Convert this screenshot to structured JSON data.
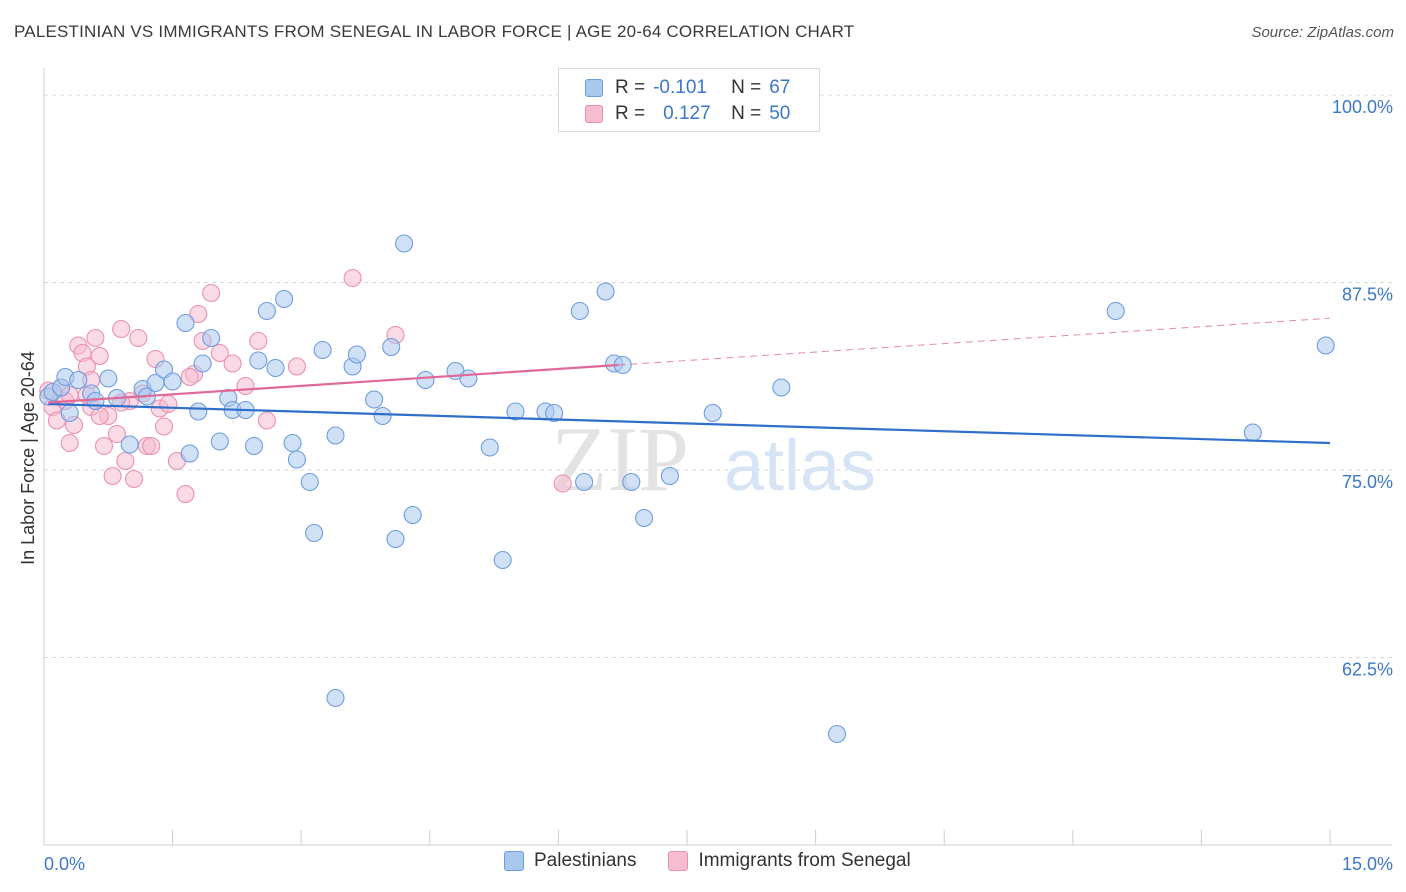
{
  "title": "PALESTINIAN VS IMMIGRANTS FROM SENEGAL IN LABOR FORCE | AGE 20-64 CORRELATION CHART",
  "source": "Source: ZipAtlas.com",
  "watermark": {
    "zip": "ZIP",
    "atlas": "atlas"
  },
  "legend": {
    "r_label": "R =",
    "n_label": "N =",
    "series": [
      {
        "r": "-0.101",
        "n": "67"
      },
      {
        "r": "0.127",
        "n": "50"
      }
    ]
  },
  "colors": {
    "blue_fill": "#a9c8ee",
    "blue_stroke": "#6d9de0",
    "blue_line": "#2f6fca",
    "pink_fill": "#f6bcd0",
    "pink_stroke": "#ea8fb0",
    "pink_line": "#e0699a",
    "tick_label": "#3b78c9",
    "grid": "#d8d8d8"
  },
  "chart_data": {
    "type": "scatter",
    "title": "PALESTINIAN VS IMMIGRANTS FROM SENEGAL IN LABOR FORCE | AGE 20-64 CORRELATION CHART",
    "ylabel": "In Labor Force | Age 20-64",
    "xlabel": "",
    "xlim": [
      0,
      15
    ],
    "ylim": [
      50,
      101
    ],
    "x_tick_labels": [
      "0.0%",
      "15.0%"
    ],
    "y_ticks": [
      62.5,
      75.0,
      87.5,
      100.0
    ],
    "y_tick_labels": [
      "62.5%",
      "75.0%",
      "87.5%",
      "100.0%"
    ],
    "series": [
      {
        "name": "Palestinians",
        "trend": {
          "x0": 0.05,
          "y0": 79.4,
          "x1": 15.0,
          "y1": 76.8,
          "dashed_to": 15.0
        },
        "points": [
          [
            0.05,
            79.9
          ],
          [
            0.1,
            80.2
          ],
          [
            0.2,
            80.5
          ],
          [
            0.25,
            81.2
          ],
          [
            0.4,
            81.0
          ],
          [
            0.55,
            80.1
          ],
          [
            0.6,
            79.6
          ],
          [
            0.75,
            81.1
          ],
          [
            0.85,
            79.8
          ],
          [
            1.0,
            76.7
          ],
          [
            1.15,
            80.4
          ],
          [
            1.2,
            79.9
          ],
          [
            1.3,
            80.8
          ],
          [
            1.4,
            81.7
          ],
          [
            1.5,
            80.9
          ],
          [
            1.65,
            84.8
          ],
          [
            1.7,
            76.1
          ],
          [
            1.8,
            78.9
          ],
          [
            1.85,
            82.1
          ],
          [
            1.95,
            83.8
          ],
          [
            2.05,
            76.9
          ],
          [
            2.15,
            79.8
          ],
          [
            2.2,
            79.0
          ],
          [
            2.35,
            79.0
          ],
          [
            2.45,
            76.6
          ],
          [
            2.5,
            82.3
          ],
          [
            2.6,
            85.6
          ],
          [
            2.7,
            81.8
          ],
          [
            2.8,
            86.4
          ],
          [
            2.9,
            76.8
          ],
          [
            2.95,
            75.7
          ],
          [
            3.1,
            74.2
          ],
          [
            3.15,
            70.8
          ],
          [
            3.25,
            83.0
          ],
          [
            3.4,
            77.3
          ],
          [
            3.6,
            81.9
          ],
          [
            3.65,
            82.7
          ],
          [
            3.85,
            79.7
          ],
          [
            3.95,
            78.6
          ],
          [
            4.05,
            83.2
          ],
          [
            4.1,
            70.4
          ],
          [
            4.2,
            90.1
          ],
          [
            4.3,
            72.0
          ],
          [
            4.45,
            81.0
          ],
          [
            4.8,
            81.6
          ],
          [
            4.95,
            81.1
          ],
          [
            5.2,
            76.5
          ],
          [
            5.35,
            69.0
          ],
          [
            5.5,
            78.9
          ],
          [
            5.85,
            78.9
          ],
          [
            5.95,
            78.8
          ],
          [
            6.25,
            85.6
          ],
          [
            6.3,
            74.2
          ],
          [
            6.55,
            86.9
          ],
          [
            6.65,
            82.1
          ],
          [
            6.75,
            82.0
          ],
          [
            6.85,
            74.2
          ],
          [
            7.0,
            71.8
          ],
          [
            7.3,
            74.6
          ],
          [
            7.8,
            78.8
          ],
          [
            8.6,
            80.5
          ],
          [
            9.25,
            57.4
          ],
          [
            12.5,
            85.6
          ],
          [
            14.1,
            77.5
          ],
          [
            14.95,
            83.3
          ],
          [
            3.4,
            59.8
          ],
          [
            0.3,
            78.8
          ]
        ]
      },
      {
        "name": "Immigrants from Senegal",
        "trend": {
          "x0": 0.05,
          "y0": 79.5,
          "x1": 6.7,
          "y1": 82.0,
          "dashed_to": 15.0
        },
        "points": [
          [
            0.05,
            80.3
          ],
          [
            0.1,
            79.2
          ],
          [
            0.15,
            78.3
          ],
          [
            0.2,
            80.5
          ],
          [
            0.25,
            79.6
          ],
          [
            0.3,
            76.8
          ],
          [
            0.35,
            78.0
          ],
          [
            0.4,
            83.3
          ],
          [
            0.45,
            82.8
          ],
          [
            0.5,
            81.9
          ],
          [
            0.5,
            80.0
          ],
          [
            0.55,
            79.2
          ],
          [
            0.6,
            83.8
          ],
          [
            0.65,
            82.6
          ],
          [
            0.7,
            76.6
          ],
          [
            0.75,
            78.6
          ],
          [
            0.8,
            74.6
          ],
          [
            0.85,
            77.4
          ],
          [
            0.9,
            84.4
          ],
          [
            0.95,
            75.6
          ],
          [
            1.0,
            79.6
          ],
          [
            1.05,
            74.4
          ],
          [
            1.1,
            83.8
          ],
          [
            1.15,
            80.1
          ],
          [
            1.2,
            76.6
          ],
          [
            1.25,
            76.6
          ],
          [
            1.3,
            82.4
          ],
          [
            1.35,
            79.1
          ],
          [
            1.45,
            79.4
          ],
          [
            1.55,
            75.6
          ],
          [
            1.65,
            73.4
          ],
          [
            1.75,
            81.4
          ],
          [
            1.8,
            85.4
          ],
          [
            1.85,
            83.6
          ],
          [
            1.95,
            86.8
          ],
          [
            2.05,
            82.8
          ],
          [
            2.2,
            82.1
          ],
          [
            2.35,
            80.6
          ],
          [
            2.5,
            83.6
          ],
          [
            2.6,
            78.3
          ],
          [
            2.95,
            81.9
          ],
          [
            3.6,
            87.8
          ],
          [
            4.1,
            84.0
          ],
          [
            6.05,
            74.1
          ],
          [
            0.65,
            78.6
          ],
          [
            0.9,
            79.5
          ],
          [
            1.7,
            81.2
          ],
          [
            0.3,
            80.0
          ],
          [
            0.55,
            81.0
          ],
          [
            1.4,
            77.9
          ]
        ]
      }
    ],
    "legend": [
      "Palestinians",
      "Immigrants from Senegal"
    ],
    "legend_position": "bottom"
  }
}
